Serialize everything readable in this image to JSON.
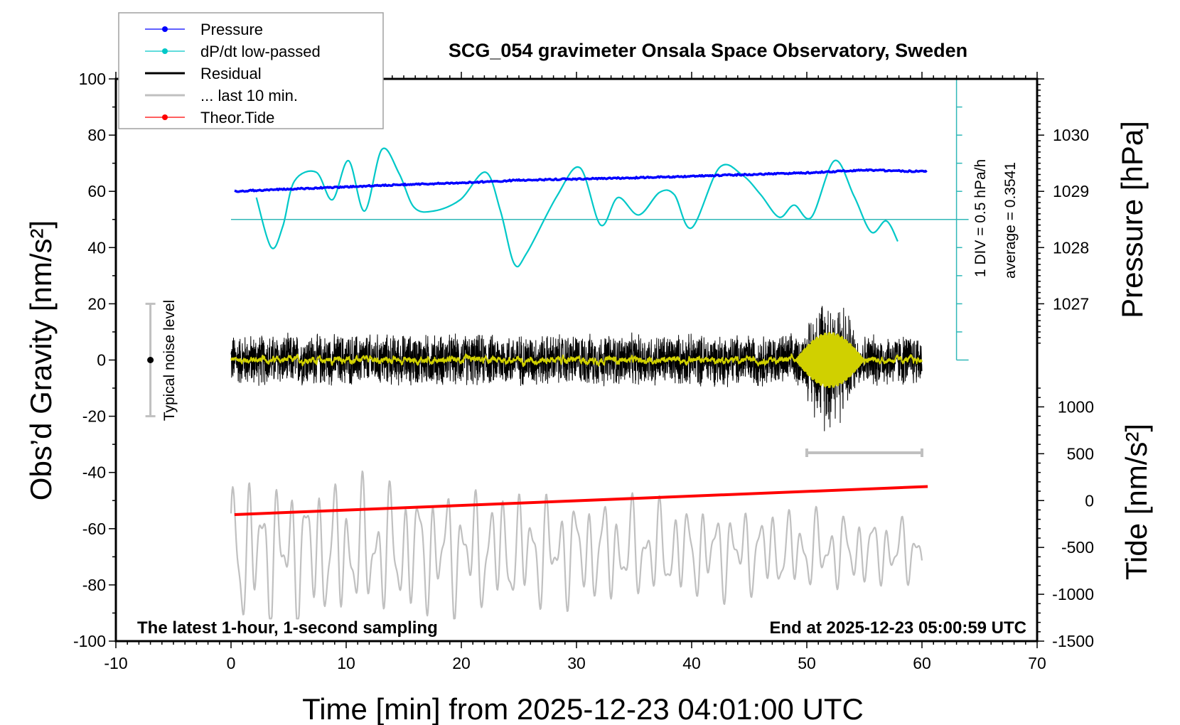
{
  "chart_data": {
    "type": "line",
    "title": "SCG_054 gravimeter Onsala Space Observatory, Sweden",
    "xlabel": "Time [min] from 2025-12-23 04:01:00 UTC",
    "ylabel_left": "Obs’d Gravity [nm/s²]",
    "ylabel_right_top": "Pressure [hPa]",
    "ylabel_right_bottom": "Tide [nm/s²]",
    "xlim": [
      -10,
      70
    ],
    "ylim": [
      -100,
      100
    ],
    "x_ticks": [
      "-10",
      "0",
      "10",
      "20",
      "30",
      "40",
      "50",
      "60",
      "70"
    ],
    "y_ticks": [
      "100",
      "80",
      "60",
      "40",
      "20",
      "0",
      "-20",
      "-40",
      "-60",
      "-80",
      "-100"
    ],
    "pressure_ticks": [
      "1030",
      "1029",
      "1028",
      "1027"
    ],
    "tide_ticks": [
      "1000",
      "500",
      "0",
      "-500",
      "-1000",
      "-1500"
    ],
    "legend": {
      "placement": "top-left",
      "entries": [
        {
          "label": "Pressure",
          "color": "#0000ff",
          "marker": true
        },
        {
          "label": "dP/dt low-passed",
          "color": "#00c8c8",
          "marker": true
        },
        {
          "label": "Residual",
          "color": "#000000",
          "marker": false
        },
        {
          "label": "... last 10 min.",
          "color": "#c0c0c0",
          "marker": false
        },
        {
          "label": "Theor.Tide",
          "color": "#ff0000",
          "marker": true
        }
      ]
    },
    "annotations": {
      "bottom_left": "The latest 1-hour, 1-second sampling",
      "bottom_right": "End at 2025-12-23 05:00:59 UTC",
      "dpdt_scale": "1 DIV = 0.5 hPa/h",
      "dpdt_average": "average = 0.3541",
      "noise_label": "Typical noise level"
    },
    "series": {
      "pressure_hPa": {
        "x": [
          0.3,
          5,
          10,
          15,
          20,
          25,
          30,
          35,
          40,
          45,
          50,
          55,
          60.5
        ],
        "y": [
          1029.0,
          1029.04,
          1029.08,
          1029.12,
          1029.15,
          1029.2,
          1029.22,
          1029.24,
          1029.27,
          1029.3,
          1029.33,
          1029.38,
          1029.35
        ]
      },
      "dpdt_gravity_units": {
        "x": [
          2.2,
          3.5,
          4.5,
          5.5,
          7.4,
          8.8,
          10.2,
          11.6,
          13.1,
          14.6,
          15.9,
          17.6,
          19.9,
          22.1,
          23.4,
          24.6,
          25.7,
          28.3,
          30.3,
          32.1,
          33.6,
          35.4,
          37.2,
          38.5,
          40,
          42.4,
          44.4,
          46,
          47.6,
          48.9,
          50.4,
          52.4,
          54.1,
          55.6,
          56.9,
          57.9
        ],
        "y": [
          57.8,
          40,
          47.6,
          63.6,
          66.8,
          57,
          70.9,
          53,
          74.9,
          66.3,
          54.3,
          53,
          57,
          66.8,
          53,
          34.2,
          38.2,
          58.3,
          68.4,
          48,
          57.8,
          51.6,
          59.6,
          58.8,
          47,
          68.4,
          65.8,
          58.8,
          50.8,
          55.1,
          50.8,
          70.9,
          58.3,
          45.5,
          49.5,
          42.2
        ]
      },
      "dpdt_baseline": 50,
      "dpdt_axis_minute": 63,
      "residual": {
        "x_range": [
          0,
          60
        ],
        "typical_amplitude": 10,
        "burst": {
          "x_range": [
            49,
            55
          ],
          "amplitude": 28
        }
      },
      "last_10_min": {
        "x_range": [
          0,
          60
        ],
        "center": -68,
        "amplitude_start": 28,
        "amplitude_end": 12
      },
      "last_10_min_bar": {
        "x_range": [
          50,
          60
        ],
        "y": -33
      },
      "tide_nm_s2": {
        "x": [
          0.3,
          60.5
        ],
        "y": [
          -150,
          150
        ]
      },
      "noise_bar": {
        "x": -7,
        "y": [
          -20,
          0,
          20
        ]
      }
    }
  }
}
